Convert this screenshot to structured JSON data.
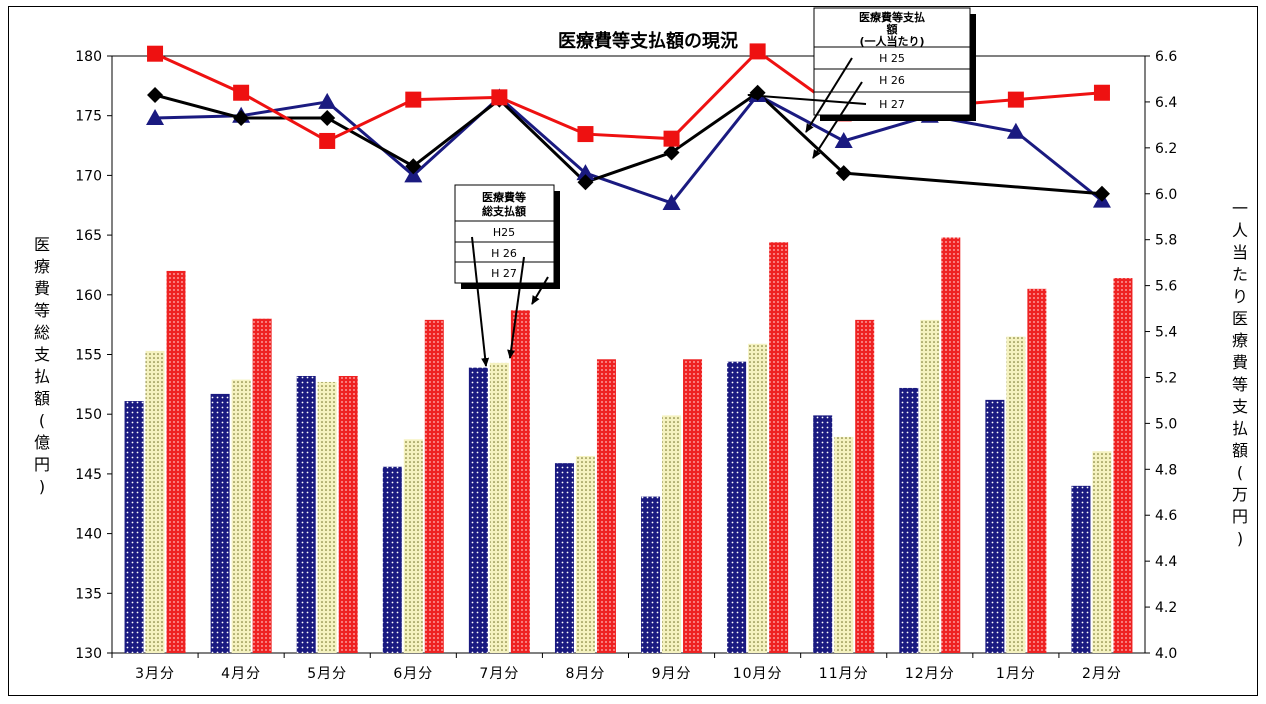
{
  "chart_data": {
    "type": "bar",
    "title": "医療費等支払額の現況",
    "ylabel": "医療費等総支払額(億円)",
    "y2label": "一人当たり医療費等支払額(万円)",
    "ylim": [
      130,
      180
    ],
    "y2lim": [
      4.0,
      6.6
    ],
    "yticks": [
      "130",
      "135",
      "140",
      "145",
      "150",
      "155",
      "160",
      "165",
      "170",
      "175",
      "180"
    ],
    "y2ticks": [
      "4.0",
      "4.2",
      "4.4",
      "4.6",
      "4.8",
      "5.0",
      "5.2",
      "5.4",
      "5.6",
      "5.8",
      "6.0",
      "6.2",
      "6.4",
      "6.6"
    ],
    "categories": [
      "3月分",
      "4月分",
      "5月分",
      "6月分",
      "7月分",
      "8月分",
      "9月分",
      "10月分",
      "11月分",
      "12月分",
      "1月分",
      "2月分"
    ],
    "bar_series": [
      {
        "name": "H25",
        "color": "#1a1a80",
        "values": [
          151.1,
          151.7,
          153.2,
          145.6,
          153.9,
          145.9,
          143.1,
          154.4,
          149.9,
          152.2,
          151.2,
          144.0
        ]
      },
      {
        "name": "H 26",
        "color": "#f2f0b8",
        "values": [
          155.3,
          152.9,
          152.7,
          147.9,
          154.3,
          146.5,
          149.9,
          155.9,
          148.1,
          157.9,
          156.5,
          146.9
        ]
      },
      {
        "name": "H 27",
        "color": "#ee2222",
        "values": [
          162.0,
          158.0,
          153.2,
          157.9,
          158.7,
          154.6,
          154.6,
          164.4,
          157.9,
          164.8,
          160.5,
          161.4
        ]
      }
    ],
    "line_series": [
      {
        "name": "H 25",
        "color": "#1a1a80",
        "marker": "triangle",
        "values": [
          6.33,
          6.34,
          6.4,
          6.08,
          6.42,
          6.09,
          5.96,
          6.43,
          6.23,
          6.34,
          6.27,
          5.97
        ]
      },
      {
        "name": "H 26",
        "color": "#000000",
        "marker": "diamond",
        "values": [
          6.43,
          6.33,
          6.33,
          6.12,
          6.41,
          6.05,
          6.18,
          6.44,
          6.09,
          null,
          null,
          6.0
        ]
      },
      {
        "name": "H 27",
        "color": "#ee1111",
        "marker": "square",
        "values": [
          6.61,
          6.44,
          6.23,
          6.41,
          6.42,
          6.26,
          6.24,
          6.62,
          6.35,
          null,
          6.41,
          6.44
        ]
      }
    ],
    "legend_bars": {
      "title_lines": [
        "医療費等",
        "総支払額"
      ],
      "rows": [
        "H25",
        "H 26",
        "H 27"
      ]
    },
    "legend_lines": {
      "title_lines": [
        "医療費等支払",
        "額",
        "(一人当たり)"
      ],
      "rows": [
        "H 25",
        "H 26",
        "H 27"
      ]
    },
    "grid": false
  }
}
